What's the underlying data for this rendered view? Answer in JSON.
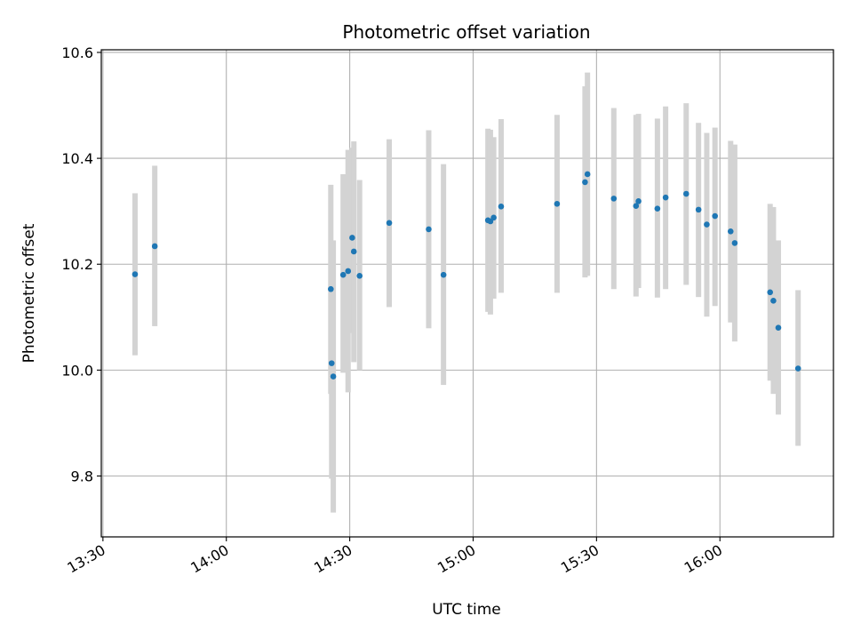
{
  "chart_data": {
    "type": "scatter",
    "title": "Photometric offset variation",
    "xlabel": "UTC time",
    "ylabel": "Photometric offset",
    "x_ticks": [
      "13:30",
      "14:00",
      "14:30",
      "15:00",
      "15:30",
      "16:00"
    ],
    "y_ticks": [
      "9.8",
      "10.0",
      "10.2",
      "10.4",
      "10.6"
    ],
    "xlim": [
      "13:29:36",
      "16:27:36"
    ],
    "ylim": [
      9.685,
      10.605
    ],
    "grid": true,
    "marker_color": "#1f77b4",
    "errorbar_color": "#d3d3d3",
    "points": [
      {
        "t": "13:37:48",
        "y": 10.181,
        "lo": 10.028,
        "hi": 10.334
      },
      {
        "t": "13:42:36",
        "y": 10.234,
        "lo": 10.083,
        "hi": 10.386
      },
      {
        "t": "14:25:24",
        "y": 10.153,
        "lo": 9.955,
        "hi": 10.35
      },
      {
        "t": "14:25:36",
        "y": 10.013,
        "lo": 9.795,
        "hi": 10.231
      },
      {
        "t": "14:26:00",
        "y": 9.988,
        "lo": 9.731,
        "hi": 10.245
      },
      {
        "t": "14:28:24",
        "y": 10.18,
        "lo": 9.995,
        "hi": 10.37
      },
      {
        "t": "14:29:36",
        "y": 10.187,
        "lo": 9.958,
        "hi": 10.416
      },
      {
        "t": "14:30:36",
        "y": 10.25,
        "lo": 10.07,
        "hi": 10.42
      },
      {
        "t": "14:31:00",
        "y": 10.224,
        "lo": 10.015,
        "hi": 10.432
      },
      {
        "t": "14:32:24",
        "y": 10.178,
        "lo": 10.0,
        "hi": 10.359
      },
      {
        "t": "14:39:36",
        "y": 10.278,
        "lo": 10.119,
        "hi": 10.436
      },
      {
        "t": "14:49:12",
        "y": 10.266,
        "lo": 10.079,
        "hi": 10.453
      },
      {
        "t": "14:52:48",
        "y": 10.18,
        "lo": 9.972,
        "hi": 10.389
      },
      {
        "t": "15:03:36",
        "y": 10.283,
        "lo": 10.11,
        "hi": 10.456
      },
      {
        "t": "15:04:12",
        "y": 10.281,
        "lo": 10.105,
        "hi": 10.454
      },
      {
        "t": "15:05:00",
        "y": 10.288,
        "lo": 10.135,
        "hi": 10.44
      },
      {
        "t": "15:06:48",
        "y": 10.309,
        "lo": 10.146,
        "hi": 10.474
      },
      {
        "t": "15:20:24",
        "y": 10.314,
        "lo": 10.146,
        "hi": 10.482
      },
      {
        "t": "15:27:12",
        "y": 10.355,
        "lo": 10.175,
        "hi": 10.536
      },
      {
        "t": "15:27:48",
        "y": 10.37,
        "lo": 10.178,
        "hi": 10.562
      },
      {
        "t": "15:34:12",
        "y": 10.324,
        "lo": 10.153,
        "hi": 10.495
      },
      {
        "t": "15:39:36",
        "y": 10.31,
        "lo": 10.139,
        "hi": 10.482
      },
      {
        "t": "15:40:12",
        "y": 10.319,
        "lo": 10.155,
        "hi": 10.484
      },
      {
        "t": "15:44:48",
        "y": 10.305,
        "lo": 10.137,
        "hi": 10.475
      },
      {
        "t": "15:46:48",
        "y": 10.326,
        "lo": 10.153,
        "hi": 10.498
      },
      {
        "t": "15:51:48",
        "y": 10.333,
        "lo": 10.161,
        "hi": 10.504
      },
      {
        "t": "15:54:48",
        "y": 10.303,
        "lo": 10.138,
        "hi": 10.467
      },
      {
        "t": "15:56:48",
        "y": 10.275,
        "lo": 10.101,
        "hi": 10.448
      },
      {
        "t": "15:58:48",
        "y": 10.291,
        "lo": 10.121,
        "hi": 10.458
      },
      {
        "t": "16:02:36",
        "y": 10.262,
        "lo": 10.09,
        "hi": 10.433
      },
      {
        "t": "16:03:36",
        "y": 10.24,
        "lo": 10.054,
        "hi": 10.426
      },
      {
        "t": "16:12:12",
        "y": 10.147,
        "lo": 9.98,
        "hi": 10.314
      },
      {
        "t": "16:13:00",
        "y": 10.131,
        "lo": 9.955,
        "hi": 10.308
      },
      {
        "t": "16:14:12",
        "y": 10.08,
        "lo": 9.916,
        "hi": 10.245
      },
      {
        "t": "16:19:00",
        "y": 10.003,
        "lo": 9.857,
        "hi": 10.151
      }
    ]
  }
}
